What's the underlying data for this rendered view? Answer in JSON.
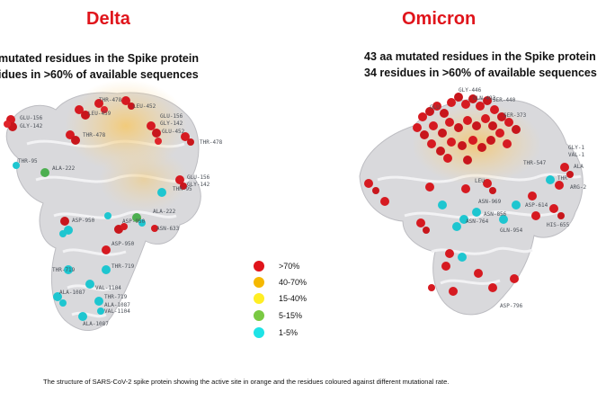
{
  "delta": {
    "title": "Delta",
    "line1": "mutated residues in the Spike protein",
    "line2": "idues in >60% of available sequences",
    "labels": [
      "GLU-156",
      "GLY-142",
      "THR-478",
      "LEU-452",
      "LEU-459",
      "GLU-156",
      "GLY-142",
      "GLU-452",
      "THR-478",
      "THR-478",
      "THR-95",
      "ALA-222",
      "GLU-156",
      "GLY-142",
      "ALA-222",
      "THR-95",
      "ASP-950",
      "ASP-950",
      "ASN-633",
      "ASP-950",
      "THR-719",
      "THR-719",
      "ALA-1087",
      "VAL-1104",
      "THR-719",
      "ALA-1087",
      "VAL-1104",
      "ALA-1087"
    ]
  },
  "omicron": {
    "title": "Omicron",
    "line1": "43 aa mutated residues in the Spike protein",
    "line2": "34 residues in >60% of available sequences",
    "labels": [
      "GLY-446",
      "GLN-493",
      "SER-440",
      "GLU",
      "SER-373",
      "THR-547",
      "GLY-1",
      "VAL-1",
      "ALA",
      "ARG-2",
      "THR",
      "LEU",
      "ASN-969",
      "ASN-856",
      "ASN-764",
      "ASP-614",
      "GLN-954",
      "HIS-655",
      "ASP-796"
    ]
  },
  "legend": [
    {
      "label": ">70%",
      "color": "#e0141b"
    },
    {
      "label": "40-70%",
      "color": "#f5b800"
    },
    {
      "label": "15-40%",
      "color": "#ffee24"
    },
    {
      "label": "5-15%",
      "color": "#7ac943"
    },
    {
      "label": "1-5%",
      "color": "#1ee3e6"
    }
  ],
  "caption": "The structure of SARS-CoV-2 spike protein showing the active site in orange and the residues coloured against different mutational rate."
}
